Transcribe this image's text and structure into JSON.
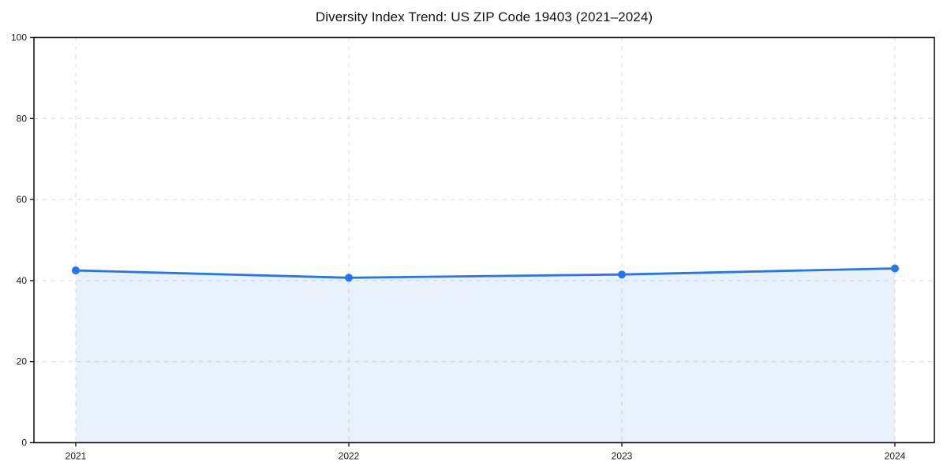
{
  "page": {
    "background": "#ffffff"
  },
  "chart_data": {
    "type": "line",
    "title": "Diversity Index Trend: US ZIP Code 19403 (2021–2024)",
    "categories": [
      "2021",
      "2022",
      "2023",
      "2024"
    ],
    "series": [
      {
        "name": "Diversity Index",
        "values": [
          42.5,
          40.7,
          41.5,
          43.0
        ]
      }
    ],
    "xlabel": "",
    "ylabel": "",
    "ylim": [
      0,
      100
    ],
    "yticks": [
      0,
      20,
      40,
      60,
      80,
      100
    ],
    "grid": true,
    "grid_style": "dashed",
    "legend_position": "none",
    "area_fill": true,
    "markers": true,
    "colors": {
      "line": "#2575f0",
      "marker": "#2575f0",
      "fill_rgba": "rgba(37,117,240,0.10)",
      "grid": "#dcdcdc",
      "axis": "#1a1a1a",
      "text": "#1a1a1a"
    }
  }
}
